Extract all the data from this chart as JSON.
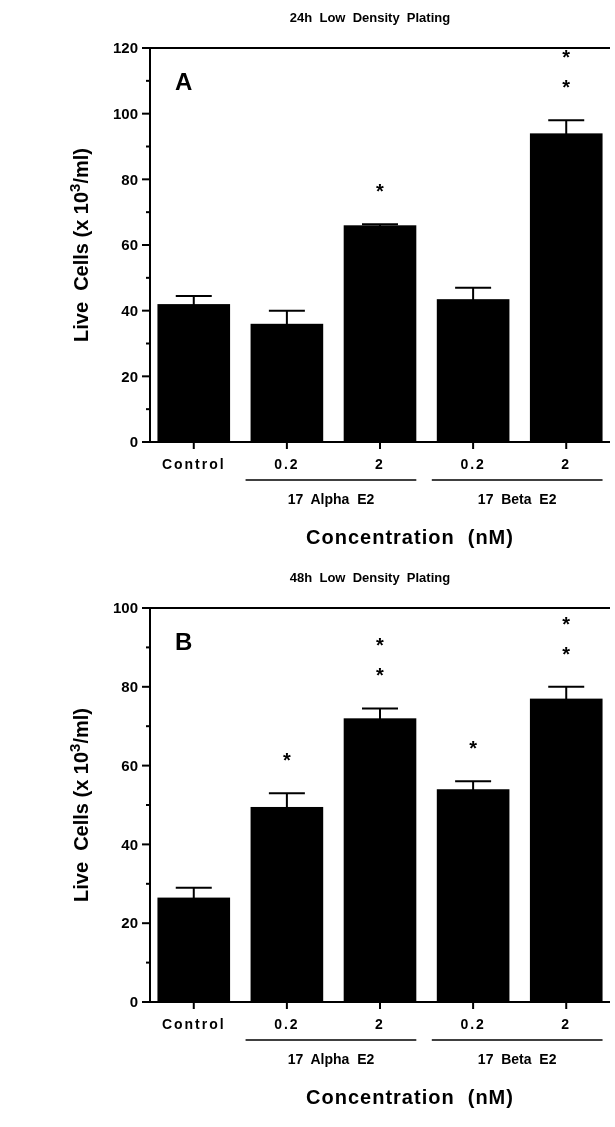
{
  "chart_data": [
    {
      "type": "bar",
      "title": "24h  Low  Density  Plating",
      "xlabel": "Concentration  (nM)",
      "ylabel": "Live  Cells (x 10$^{3}$/ml)",
      "categories": [
        "Control",
        "0.2",
        "2",
        "0.2",
        "2"
      ],
      "values": [
        42,
        36,
        66,
        43.5,
        94
      ],
      "errors": [
        2.5,
        4,
        0.3,
        3.5,
        4
      ],
      "value_labels": [
        null,
        null,
        "*",
        null,
        "**"
      ],
      "color": "#000000",
      "ylim": [
        0,
        120
      ],
      "yticks": [
        0,
        {
          "value": 10,
          "label": null
        },
        20,
        {
          "value": 30,
          "label": null
        },
        40,
        {
          "value": 50,
          "label": null
        },
        60,
        {
          "value": 70,
          "label": null
        },
        80,
        {
          "value": 90,
          "label": null
        },
        100,
        {
          "value": 110,
          "label": null
        },
        120
      ],
      "annotations": [
        "A",
        "17  Alpha  E2",
        "17  Beta  E2"
      ],
      "grid": false
    },
    {
      "type": "bar",
      "title": "48h  Low  Density  Plating",
      "xlabel": "Concentration  (nM)",
      "ylabel": "Live  Cells (x 10$^{3}$/ml)",
      "categories": [
        "Control",
        "0.2",
        "2",
        "0.2",
        "2"
      ],
      "values": [
        26.5,
        49.5,
        72,
        54,
        77
      ],
      "errors": [
        2.5,
        3.5,
        2.5,
        2,
        3
      ],
      "value_labels": [
        null,
        "*",
        "**",
        "*",
        "**"
      ],
      "color": "#000000",
      "ylim": [
        0,
        100
      ],
      "yticks": [
        0,
        {
          "value": 10,
          "label": null
        },
        20,
        {
          "value": 30,
          "label": null
        },
        40,
        {
          "value": 50,
          "label": null
        },
        60,
        {
          "value": 70,
          "label": null
        },
        80,
        {
          "value": 90,
          "label": null
        },
        100
      ],
      "annotations": [
        "B",
        "17  Alpha  E2",
        "17  Beta  E2"
      ],
      "grid": false
    }
  ]
}
